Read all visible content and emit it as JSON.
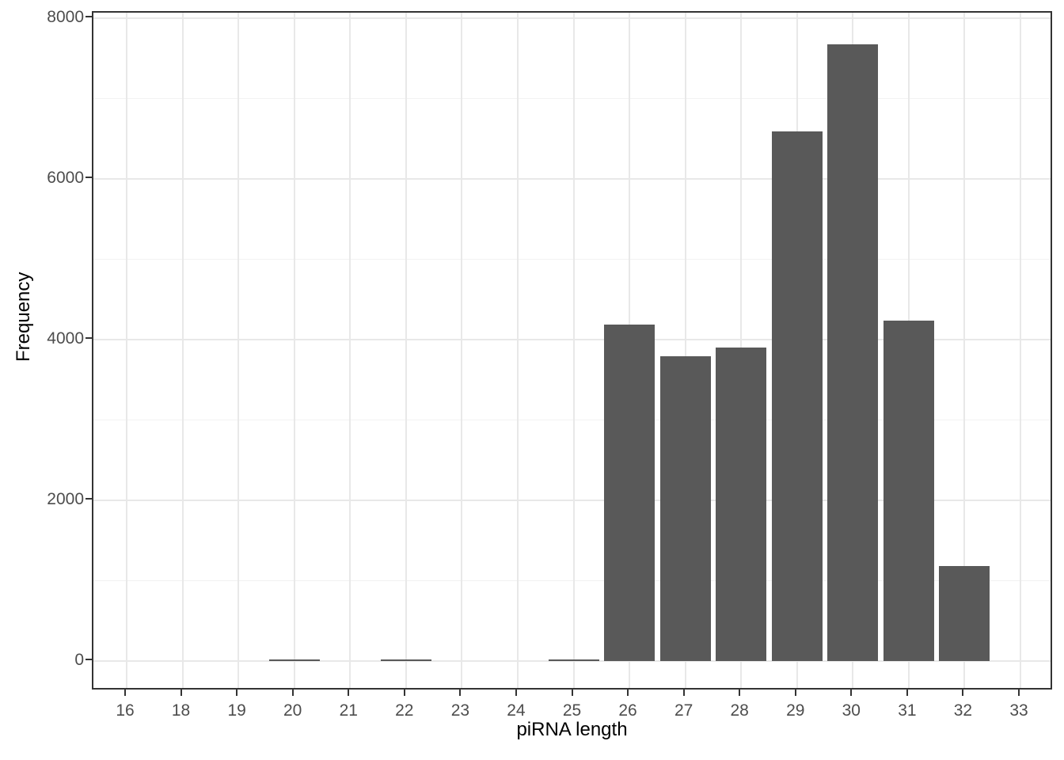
{
  "chart_data": {
    "type": "bar",
    "title": "",
    "xlabel": "piRNA length",
    "ylabel": "Frequency",
    "categories": [
      "16",
      "18",
      "19",
      "20",
      "21",
      "22",
      "23",
      "24",
      "25",
      "26",
      "27",
      "28",
      "29",
      "30",
      "31",
      "32",
      "33"
    ],
    "values": [
      0,
      0,
      0,
      20,
      0,
      18,
      0,
      0,
      22,
      4190,
      3790,
      3900,
      6590,
      7670,
      4240,
      1180,
      0
    ],
    "ylim": [
      0,
      8000
    ],
    "y_major_ticks": [
      0,
      2000,
      4000,
      6000,
      8000
    ],
    "y_tick_labels": [
      "0",
      "2000",
      "4000",
      "6000",
      "8000"
    ],
    "y_minor_gridlines": [
      1000,
      3000,
      5000,
      7000
    ],
    "grid": "on",
    "legend": "none",
    "colors": {
      "bar_fill": "#595959",
      "panel_border": "#333333",
      "major_grid": "#e8e8e8",
      "minor_grid": "#f2f2f2",
      "tick_mark": "#333333",
      "tick_label": "#4d4d4d",
      "axis_title": "#000000",
      "background": "#ffffff"
    }
  }
}
